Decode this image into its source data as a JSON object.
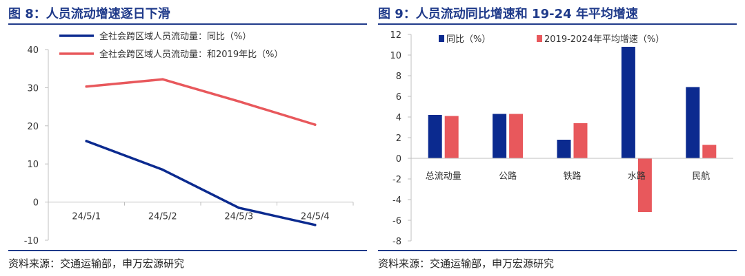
{
  "figures": [
    {
      "title": "图 8：人员流动增速逐日下滑",
      "source": "资料来源：交通运输部，申万宏源研究"
    },
    {
      "title": "图 9：人员流动同比增速和 19-24 年平均增速",
      "source": "资料来源：交通运输部，申万宏源研究"
    }
  ],
  "colors": {
    "title": "#1f3a8a",
    "blue": "#0b2a8f",
    "red": "#e8585c",
    "axis": "#bfbfbf"
  },
  "chart_data": [
    {
      "type": "line",
      "title": "",
      "xlabel": "",
      "ylabel": "",
      "categories": [
        "24/5/1",
        "24/5/2",
        "24/5/3",
        "24/5/4"
      ],
      "series": [
        {
          "name": "全社会跨区域人员流动量：同比（%）",
          "color": "#0b2a8f",
          "values": [
            16,
            8.5,
            -1.5,
            -6
          ]
        },
        {
          "name": "全社会跨区域人员流动量：和2019年比（%）",
          "color": "#e8585c",
          "values": [
            30.3,
            32.2,
            26.4,
            20.3
          ]
        }
      ],
      "ylim": [
        -10,
        40
      ],
      "yticks": [
        -10,
        0,
        10,
        20,
        30,
        40
      ],
      "grid": false,
      "legend": "top"
    },
    {
      "type": "bar",
      "title": "",
      "xlabel": "",
      "ylabel": "",
      "categories": [
        "总流动量",
        "公路",
        "铁路",
        "水路",
        "民航"
      ],
      "series": [
        {
          "name": "同比（%）",
          "color": "#0b2a8f",
          "values": [
            4.2,
            4.3,
            1.8,
            10.8,
            6.9
          ]
        },
        {
          "name": "2019-2024年平均增速（%）",
          "color": "#e8585c",
          "values": [
            4.1,
            4.3,
            3.4,
            -5.2,
            1.3
          ]
        }
      ],
      "ylim": [
        -8,
        12
      ],
      "yticks": [
        -8,
        -6,
        -4,
        -2,
        0,
        2,
        4,
        6,
        8,
        10,
        12
      ],
      "grid": false,
      "legend": "top"
    }
  ]
}
